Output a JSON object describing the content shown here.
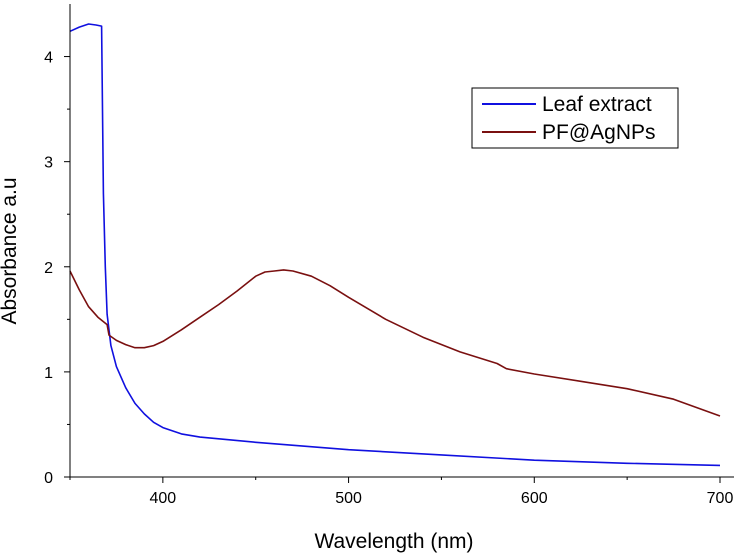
{
  "chart_data": {
    "type": "line",
    "title": "",
    "xlabel": "Wavelength (nm)",
    "ylabel": "Absorbance a.u",
    "xlim": [
      350,
      700
    ],
    "ylim": [
      0,
      4.5
    ],
    "x_ticks": [
      400,
      500,
      600,
      700
    ],
    "y_ticks": [
      0,
      1,
      2,
      3,
      4
    ],
    "x_tick_labels": [
      "400",
      "500",
      "600",
      "700"
    ],
    "y_tick_labels": [
      "0",
      "1",
      "2",
      "3",
      "4"
    ],
    "grid": false,
    "legend_position": "top-right",
    "series": [
      {
        "name": "Leaf extract",
        "color": "#1010e0",
        "points": [
          [
            350,
            4.24
          ],
          [
            355,
            4.28
          ],
          [
            360,
            4.31
          ],
          [
            364,
            4.3
          ],
          [
            367,
            4.29
          ],
          [
            368,
            2.7
          ],
          [
            369,
            2.0
          ],
          [
            370,
            1.55
          ],
          [
            372,
            1.25
          ],
          [
            375,
            1.05
          ],
          [
            380,
            0.85
          ],
          [
            385,
            0.7
          ],
          [
            390,
            0.6
          ],
          [
            395,
            0.52
          ],
          [
            400,
            0.47
          ],
          [
            410,
            0.41
          ],
          [
            420,
            0.38
          ],
          [
            450,
            0.33
          ],
          [
            500,
            0.26
          ],
          [
            550,
            0.21
          ],
          [
            600,
            0.16
          ],
          [
            650,
            0.13
          ],
          [
            700,
            0.11
          ]
        ]
      },
      {
        "name": "PF@AgNPs",
        "color": "#7a1010",
        "points": [
          [
            350,
            1.96
          ],
          [
            355,
            1.78
          ],
          [
            360,
            1.62
          ],
          [
            365,
            1.52
          ],
          [
            370,
            1.45
          ],
          [
            371,
            1.35
          ],
          [
            375,
            1.3
          ],
          [
            380,
            1.26
          ],
          [
            385,
            1.23
          ],
          [
            390,
            1.23
          ],
          [
            395,
            1.25
          ],
          [
            400,
            1.29
          ],
          [
            410,
            1.4
          ],
          [
            420,
            1.52
          ],
          [
            430,
            1.64
          ],
          [
            440,
            1.77
          ],
          [
            450,
            1.91
          ],
          [
            455,
            1.95
          ],
          [
            460,
            1.96
          ],
          [
            465,
            1.97
          ],
          [
            470,
            1.96
          ],
          [
            480,
            1.91
          ],
          [
            490,
            1.82
          ],
          [
            500,
            1.71
          ],
          [
            520,
            1.5
          ],
          [
            540,
            1.33
          ],
          [
            560,
            1.19
          ],
          [
            580,
            1.08
          ],
          [
            585,
            1.03
          ],
          [
            600,
            0.98
          ],
          [
            625,
            0.91
          ],
          [
            650,
            0.84
          ],
          [
            675,
            0.74
          ],
          [
            700,
            0.58
          ]
        ]
      }
    ]
  }
}
